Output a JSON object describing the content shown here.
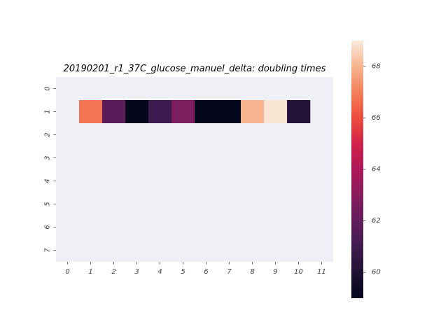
{
  "chart_data": {
    "type": "heatmap",
    "title": "20190201_r1_37C_glucose_manuel_delta: doubling times",
    "xlabel": "",
    "ylabel": "",
    "x_ticks": [
      "0",
      "1",
      "2",
      "3",
      "4",
      "5",
      "6",
      "7",
      "8",
      "9",
      "10",
      "11"
    ],
    "y_ticks": [
      "0",
      "1",
      "2",
      "3",
      "4",
      "5",
      "6",
      "7"
    ],
    "background_color": "#eff0f5",
    "cells": [
      {
        "row": 1,
        "col": 1,
        "value": 66.8
      },
      {
        "row": 1,
        "col": 2,
        "value": 61.8
      },
      {
        "row": 1,
        "col": 3,
        "value": 59.1
      },
      {
        "row": 1,
        "col": 4,
        "value": 61.0
      },
      {
        "row": 1,
        "col": 5,
        "value": 62.7
      },
      {
        "row": 1,
        "col": 6,
        "value": 59.1
      },
      {
        "row": 1,
        "col": 7,
        "value": 59.1
      },
      {
        "row": 1,
        "col": 8,
        "value": 68.0
      },
      {
        "row": 1,
        "col": 9,
        "value": 68.9
      },
      {
        "row": 1,
        "col": 10,
        "value": 60.2
      }
    ],
    "colorbar": {
      "colormap": "rocket",
      "vmin": 59.0,
      "vmax": 69.0,
      "ticks": [
        60,
        62,
        64,
        66,
        68
      ]
    }
  }
}
